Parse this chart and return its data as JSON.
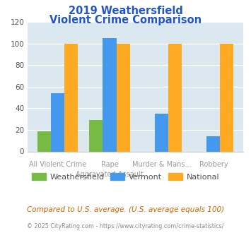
{
  "title_line1": "2019 Weathersfield",
  "title_line2": "Violent Crime Comparison",
  "top_labels": [
    "",
    "Rape",
    "Murder & Mans...",
    ""
  ],
  "bottom_labels": [
    "All Violent Crime",
    "Aggravated Assault",
    "",
    "Robbery"
  ],
  "weathersfield_values": [
    19,
    29,
    0,
    0
  ],
  "vermont_values": [
    54,
    105,
    35,
    14
  ],
  "national_values": [
    100,
    100,
    100,
    100
  ],
  "bar_color_weathersfield": "#77bb44",
  "bar_color_vermont": "#4499ee",
  "bar_color_national": "#ffaa22",
  "ylim": [
    0,
    120
  ],
  "yticks": [
    0,
    20,
    40,
    60,
    80,
    100,
    120
  ],
  "plot_bg_color": "#dce8f0",
  "title_color": "#2255cc",
  "legend_labels": [
    "Weathersfield",
    "Vermont",
    "National"
  ],
  "footer_text": "Compared to U.S. average. (U.S. average equals 100)",
  "copyright_text": "© 2025 CityRating.com - https://www.cityrating.com/crime-statistics/",
  "footer_color": "#cc6600",
  "copyright_color": "#888888",
  "label_color": "#999999"
}
